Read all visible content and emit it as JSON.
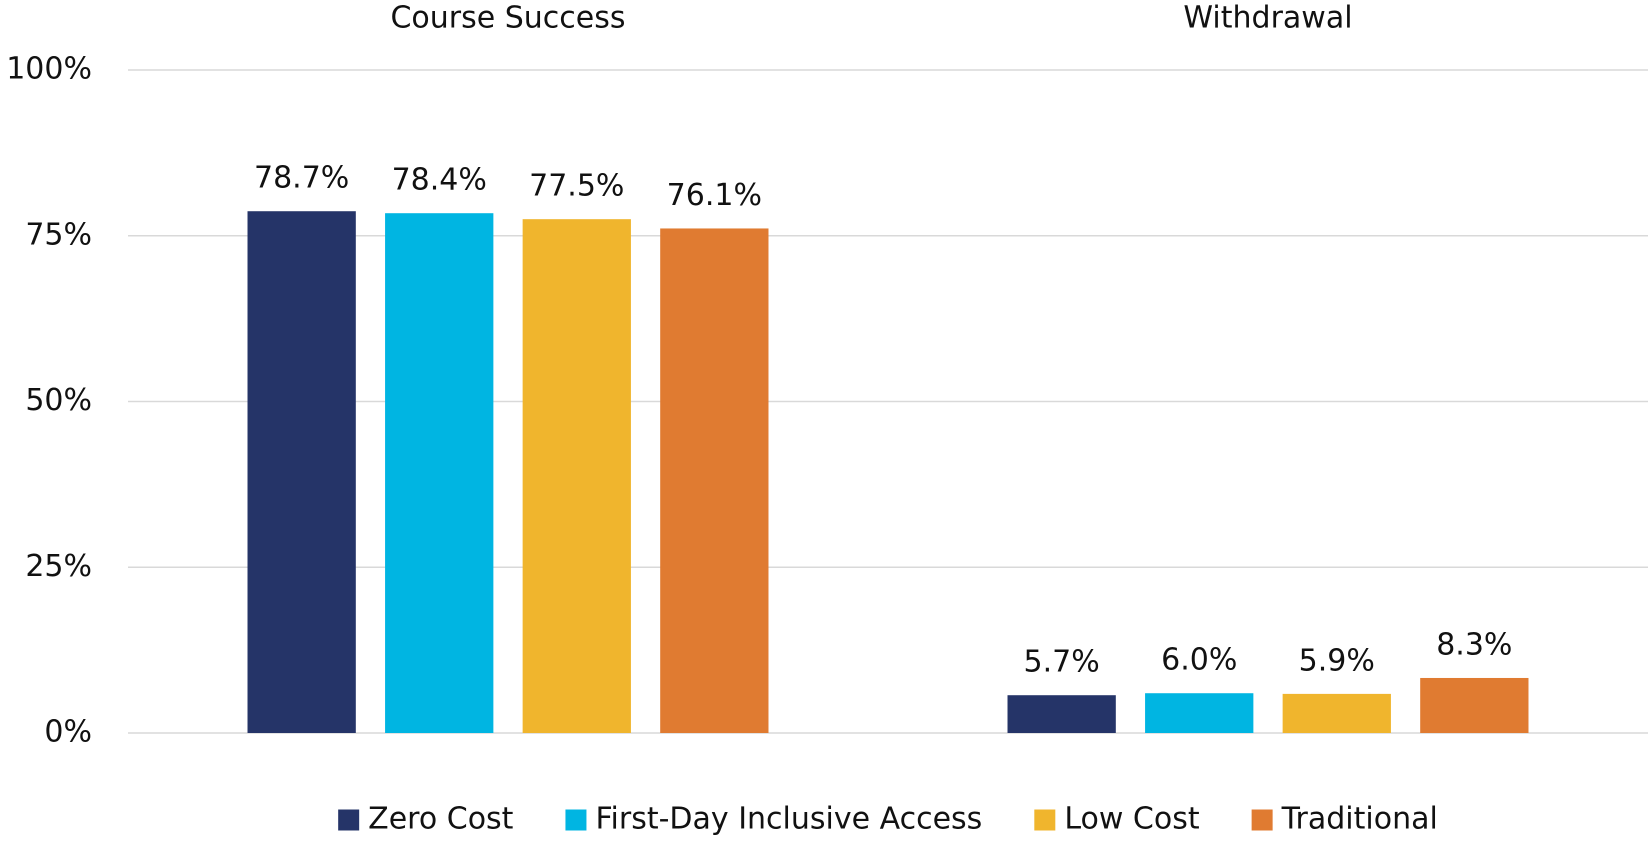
{
  "chart_data": {
    "type": "bar",
    "categories": [
      "Course Success",
      "Withdrawal"
    ],
    "series": [
      {
        "name": "Zero Cost",
        "color": "#253468",
        "values": [
          78.7,
          5.7
        ],
        "value_labels": [
          "78.7%",
          "5.7%"
        ]
      },
      {
        "name": "First-Day Inclusive Access",
        "color": "#00b5e2",
        "values": [
          78.4,
          6.0
        ],
        "value_labels": [
          "78.4%",
          "6.0%"
        ]
      },
      {
        "name": "Low Cost",
        "color": "#f0b52d",
        "values": [
          77.5,
          5.9
        ],
        "value_labels": [
          "77.5%",
          "5.9%"
        ]
      },
      {
        "name": "Traditional",
        "color": "#e07b31",
        "values": [
          76.1,
          8.3
        ],
        "value_labels": [
          "76.1%",
          "8.3%"
        ]
      }
    ],
    "ylim": [
      0,
      100
    ],
    "yticks": [
      {
        "value": 0,
        "label": "0%"
      },
      {
        "value": 25,
        "label": "25%"
      },
      {
        "value": 50,
        "label": "50%"
      },
      {
        "value": 75,
        "label": "75%"
      },
      {
        "value": 100,
        "label": "100%"
      }
    ],
    "grid": true,
    "legend": "bottom"
  }
}
